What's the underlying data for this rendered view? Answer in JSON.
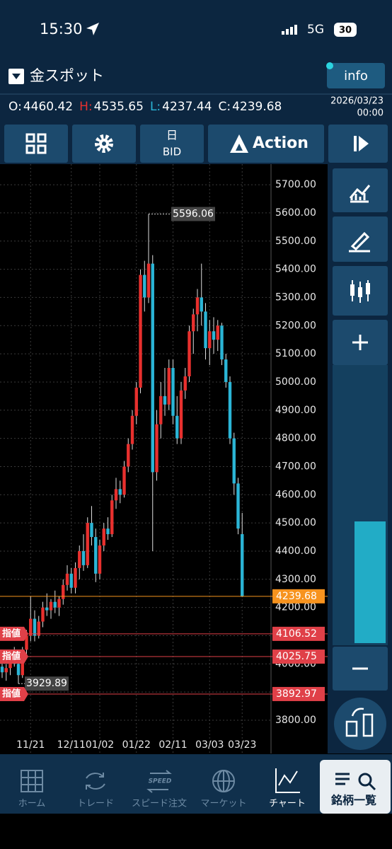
{
  "status_bar": {
    "time": "15:30",
    "network": "5G",
    "battery": "30"
  },
  "header": {
    "symbol": "金スポット",
    "info_button": "info",
    "ohlc": [
      {
        "label": "O:",
        "value": 4460.42
      },
      {
        "label": "H:",
        "value": 4535.65
      },
      {
        "label": "L:",
        "value": 4237.44
      },
      {
        "label": "C:",
        "value": 4239.68
      }
    ],
    "date": "2026/03/23",
    "time": "00:00"
  },
  "toolbar": {
    "period": "日",
    "price_type": "BID",
    "action": "Action"
  },
  "chart_data": {
    "type": "candlestick",
    "up_color": "#e8302e",
    "down_color": "#2bb5d6",
    "categories": [
      null,
      null,
      null,
      null,
      null,
      null,
      null,
      "11/21",
      null,
      null,
      null,
      null,
      null,
      null,
      null,
      null,
      null,
      "12/11",
      null,
      null,
      null,
      null,
      null,
      null,
      "01/02",
      null,
      null,
      null,
      null,
      null,
      null,
      null,
      null,
      "01/22",
      null,
      null,
      null,
      null,
      null,
      null,
      null,
      null,
      "02/11",
      null,
      null,
      null,
      null,
      null,
      null,
      null,
      null,
      "03/03",
      null,
      null,
      null,
      null,
      null,
      null,
      null,
      "03/23"
    ],
    "open": [
      3990,
      3970,
      3985,
      4020,
      4000,
      3960,
      4050,
      4100,
      4160,
      4100,
      4150,
      4200,
      4190,
      4220,
      4200,
      4230,
      4280,
      4320,
      4270,
      4340,
      4400,
      4350,
      4500,
      4450,
      4320,
      4420,
      4480,
      4460,
      4580,
      4620,
      4600,
      4700,
      4780,
      4880,
      4980,
      5380,
      5300,
      5420,
      4680,
      4850,
      4950,
      4920,
      5050,
      4880,
      4800,
      4970,
      5020,
      5180,
      5240,
      5300,
      5250,
      5120,
      5180,
      5150,
      5200,
      5080,
      5000,
      4800,
      4640,
      4460.42
    ],
    "high": [
      4020,
      4000,
      4040,
      4060,
      4030,
      4060,
      4120,
      4240,
      4190,
      4170,
      4220,
      4250,
      4230,
      4260,
      4240,
      4300,
      4350,
      4340,
      4360,
      4420,
      4460,
      4520,
      4560,
      4480,
      4440,
      4500,
      4520,
      4600,
      4660,
      4650,
      4720,
      4800,
      4900,
      5000,
      5400,
      5430,
      5596.06,
      5450,
      4900,
      5000,
      5050,
      5080,
      5080,
      4950,
      5000,
      5050,
      5200,
      5260,
      5330,
      5420,
      5280,
      5220,
      5230,
      5220,
      5210,
      5100,
      5020,
      4820,
      4660,
      4535.65
    ],
    "low": [
      3950,
      3940,
      3960,
      3990,
      3929.89,
      3950,
      4030,
      4080,
      4080,
      4090,
      4130,
      4170,
      4160,
      4180,
      4170,
      4210,
      4260,
      4250,
      4250,
      4300,
      4330,
      4340,
      4420,
      4290,
      4300,
      4400,
      4440,
      4450,
      4550,
      4570,
      4590,
      4680,
      4760,
      4850,
      4960,
      5250,
      5280,
      4400,
      4650,
      4800,
      4880,
      4900,
      4850,
      4780,
      4780,
      4940,
      5000,
      5100,
      5180,
      5200,
      5080,
      5060,
      5100,
      5110,
      5060,
      4980,
      4780,
      4600,
      4460,
      4237.44
    ],
    "close": [
      3970,
      3985,
      4020,
      4000,
      3960,
      4050,
      4100,
      4160,
      4100,
      4150,
      4200,
      4190,
      4220,
      4200,
      4230,
      4280,
      4320,
      4270,
      4340,
      4400,
      4350,
      4500,
      4450,
      4320,
      4420,
      4480,
      4460,
      4580,
      4620,
      4600,
      4700,
      4780,
      4880,
      4980,
      5380,
      5300,
      5420,
      4680,
      4850,
      4950,
      4920,
      5050,
      4880,
      4800,
      4970,
      5020,
      5180,
      5240,
      5300,
      5250,
      5120,
      5180,
      5150,
      5200,
      5080,
      5000,
      4800,
      4640,
      4480,
      4239.68
    ],
    "ylim": [
      3682,
      5773
    ],
    "yticks": [
      {
        "value": 3800,
        "label": "3800.00"
      },
      {
        "value": 3900,
        "label": "3900.00"
      },
      {
        "value": 4000,
        "label": "4000.00"
      },
      {
        "value": 4100,
        "label": "4100.00"
      },
      {
        "value": 4200,
        "label": "4200.00"
      },
      {
        "value": 4300,
        "label": "4300.00"
      },
      {
        "value": 4400,
        "label": "4400.00"
      },
      {
        "value": 4500,
        "label": "4500.00"
      },
      {
        "value": 4600,
        "label": "4600.00"
      },
      {
        "value": 4700,
        "label": "4700.00"
      },
      {
        "value": 4800,
        "label": "4800.00"
      },
      {
        "value": 4900,
        "label": "4900.00"
      },
      {
        "value": 5000,
        "label": "5000.00"
      },
      {
        "value": 5100,
        "label": "5100.00"
      },
      {
        "value": 5200,
        "label": "5200.00"
      },
      {
        "value": 5300,
        "label": "5300.00"
      },
      {
        "value": 5400,
        "label": "5400.00"
      },
      {
        "value": 5500,
        "label": "5500.00"
      },
      {
        "value": 5600,
        "label": "5600.00"
      },
      {
        "value": 5700,
        "label": "5700.00"
      }
    ],
    "grid": true,
    "price_lines": [
      {
        "value": 4239.68,
        "color": "#f7931e"
      },
      {
        "value": 4106.52,
        "color": "#e04048",
        "tag": "指値"
      },
      {
        "value": 4025.75,
        "color": "#e04048",
        "tag": "指値"
      },
      {
        "value": 3892.97,
        "color": "#e04048",
        "tag": "指値"
      }
    ]
  },
  "nav": {
    "items": [
      "ホーム",
      "トレード",
      "スピード注文",
      "マーケット",
      "チャート"
    ],
    "speed_icon": "SPEED",
    "symbol_list": "銘柄一覧"
  }
}
